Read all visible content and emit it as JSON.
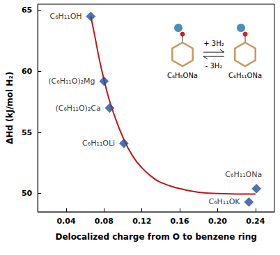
{
  "chart_data": {
    "type": "scatter",
    "x_label": "Delocalized charge from O to benzene ring",
    "y_label": "ΔHd (kJ/mol H₂)",
    "xlim": [
      0.01,
      0.26
    ],
    "xticks": [
      0.04,
      0.08,
      0.12,
      0.16,
      {
        "value": 0.2,
        "label": "0.20"
      },
      0.24
    ],
    "ylim": [
      48.5,
      65.5
    ],
    "yticks": [
      50,
      55,
      60,
      65
    ],
    "grid": false,
    "series": [
      {
        "type": "scatter",
        "color": "#1f4fa0",
        "marker": "diamond",
        "x": [
          0.066,
          0.08,
          0.086,
          0.101,
          0.241,
          0.233
        ],
        "values": [
          64.5,
          59.2,
          57.0,
          54.1,
          50.4,
          49.3
        ],
        "point_labels": [
          "C₆H₁₁OH",
          "(C₆H₁₁O)₂Mg",
          "(C₆H₁₁O)₂Ca",
          "C₆H₁₁OLi",
          "C₆H₁₁ONa",
          "C₆H₁₁OK"
        ]
      },
      {
        "type": "line",
        "color": "#c0151b",
        "line_style": "solid",
        "x": [
          0.066,
          0.07,
          0.075,
          0.08,
          0.085,
          0.09,
          0.1,
          0.11,
          0.12,
          0.13,
          0.14,
          0.16,
          0.18,
          0.2,
          0.24
        ],
        "values": [
          64.5,
          63.0,
          61.0,
          59.3,
          57.8,
          56.6,
          54.6,
          53.1,
          52.1,
          51.4,
          50.9,
          50.4,
          50.1,
          50.0,
          49.95
        ]
      }
    ],
    "inset": {
      "left_label": "C₆H₅ONa",
      "right_label": "C₆H₁₁ONa",
      "forward": "+ 3H₂",
      "reverse": "- 3H₂"
    }
  }
}
